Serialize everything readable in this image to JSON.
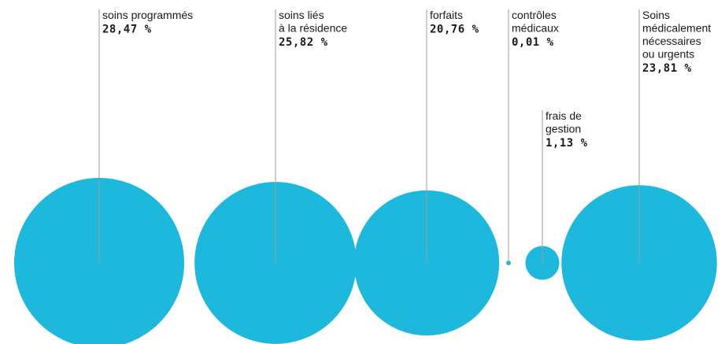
{
  "chart_data": {
    "type": "bubble",
    "unit": "%",
    "bubble_color": "#1fb8dd",
    "items": [
      {
        "label_lines": [
          "soins programmés"
        ],
        "value": 28.47,
        "value_text": "28,47 %"
      },
      {
        "label_lines": [
          "soins liés",
          "à la résidence"
        ],
        "value": 25.82,
        "value_text": "25,82 %"
      },
      {
        "label_lines": [
          "forfaits"
        ],
        "value": 20.76,
        "value_text": "20,76 %"
      },
      {
        "label_lines": [
          "contrôles",
          "médicaux"
        ],
        "value": 0.01,
        "value_text": "0,01 %"
      },
      {
        "label_lines": [
          "frais de",
          "gestion"
        ],
        "value": 1.13,
        "value_text": "1,13 %"
      },
      {
        "label_lines": [
          "Soins",
          "médicalement",
          "nécessaires",
          "ou urgents"
        ],
        "value": 23.81,
        "value_text": "23,81 %"
      }
    ]
  }
}
